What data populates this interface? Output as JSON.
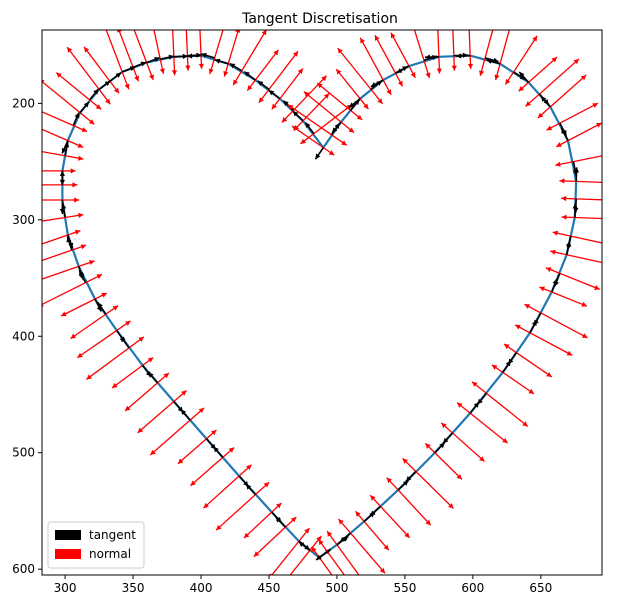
{
  "chart_data": {
    "type": "quiver",
    "title": "Tangent Discretisation",
    "xlabel": "",
    "ylabel": "",
    "xlim": [
      283,
      695
    ],
    "ylim": [
      605,
      137
    ],
    "y_inverted": true,
    "xticks": [
      300,
      350,
      400,
      450,
      500,
      550,
      600,
      650
    ],
    "yticks": [
      200,
      300,
      400,
      500,
      600
    ],
    "grid": false,
    "legend": {
      "location": "lower-left",
      "entries": [
        {
          "label": "tangent",
          "color": "#000000"
        },
        {
          "label": "normal",
          "color": "#ff0000"
        }
      ]
    },
    "curve": {
      "description": "heart-shaped closed contour",
      "color": "#1f77b4",
      "points": [
        [
          490,
          238
        ],
        [
          475,
          215
        ],
        [
          458,
          196
        ],
        [
          440,
          180
        ],
        [
          420,
          166
        ],
        [
          400,
          159
        ],
        [
          380,
          160
        ],
        [
          360,
          165
        ],
        [
          342,
          173
        ],
        [
          325,
          188
        ],
        [
          311,
          208
        ],
        [
          302,
          232
        ],
        [
          298,
          258
        ],
        [
          298,
          283
        ],
        [
          302,
          313
        ],
        [
          310,
          340
        ],
        [
          322,
          368
        ],
        [
          338,
          395
        ],
        [
          357,
          425
        ],
        [
          380,
          456
        ],
        [
          404,
          488
        ],
        [
          428,
          520
        ],
        [
          452,
          551
        ],
        [
          472,
          576
        ],
        [
          487,
          590
        ],
        [
          500,
          579
        ],
        [
          520,
          559
        ],
        [
          545,
          532
        ],
        [
          572,
          500
        ],
        [
          598,
          466
        ],
        [
          622,
          431
        ],
        [
          642,
          397
        ],
        [
          658,
          362
        ],
        [
          669,
          330
        ],
        [
          675,
          298
        ],
        [
          676,
          267
        ],
        [
          670,
          232
        ],
        [
          657,
          203
        ],
        [
          641,
          182
        ],
        [
          620,
          166
        ],
        [
          598,
          159
        ],
        [
          575,
          160
        ],
        [
          553,
          168
        ],
        [
          534,
          180
        ],
        [
          517,
          196
        ],
        [
          503,
          216
        ],
        [
          490,
          238
        ]
      ]
    },
    "tangent_color": "#000000",
    "normal_color": "#ff0000",
    "vector_sample_points": [
      [
        400,
        159
      ],
      [
        390,
        159
      ],
      [
        410,
        161
      ],
      [
        380,
        160
      ],
      [
        420,
        166
      ],
      [
        370,
        162
      ],
      [
        430,
        172
      ],
      [
        360,
        165
      ],
      [
        440,
        180
      ],
      [
        350,
        169
      ],
      [
        450,
        188
      ],
      [
        342,
        173
      ],
      [
        458,
        196
      ],
      [
        333,
        181
      ],
      [
        468,
        206
      ],
      [
        325,
        188
      ],
      [
        475,
        215
      ],
      [
        318,
        197
      ],
      [
        483,
        226
      ],
      [
        311,
        208
      ],
      [
        490,
        238
      ],
      [
        306,
        219
      ],
      [
        302,
        232
      ],
      [
        300,
        245
      ],
      [
        298,
        258
      ],
      [
        298,
        270
      ],
      [
        298,
        283
      ],
      [
        300,
        298
      ],
      [
        302,
        313
      ],
      [
        305,
        326
      ],
      [
        310,
        340
      ],
      [
        315,
        354
      ],
      [
        322,
        368
      ],
      [
        330,
        381
      ],
      [
        338,
        395
      ],
      [
        347,
        410
      ],
      [
        357,
        425
      ],
      [
        368,
        440
      ],
      [
        380,
        456
      ],
      [
        392,
        472
      ],
      [
        404,
        488
      ],
      [
        416,
        504
      ],
      [
        428,
        520
      ],
      [
        440,
        536
      ],
      [
        452,
        551
      ],
      [
        462,
        564
      ],
      [
        472,
        576
      ],
      [
        480,
        584
      ],
      [
        487,
        590
      ],
      [
        493,
        585
      ],
      [
        500,
        579
      ],
      [
        510,
        569
      ],
      [
        520,
        559
      ],
      [
        532,
        546
      ],
      [
        545,
        532
      ],
      [
        558,
        516
      ],
      [
        572,
        500
      ],
      [
        585,
        483
      ],
      [
        598,
        466
      ],
      [
        610,
        449
      ],
      [
        622,
        431
      ],
      [
        632,
        414
      ],
      [
        642,
        397
      ],
      [
        650,
        380
      ],
      [
        658,
        362
      ],
      [
        664,
        346
      ],
      [
        669,
        330
      ],
      [
        672,
        314
      ],
      [
        675,
        298
      ],
      [
        676,
        282
      ],
      [
        676,
        267
      ],
      [
        674,
        250
      ],
      [
        670,
        232
      ],
      [
        664,
        217
      ],
      [
        657,
        203
      ],
      [
        649,
        192
      ],
      [
        641,
        182
      ],
      [
        630,
        173
      ],
      [
        620,
        166
      ],
      [
        609,
        161
      ],
      [
        598,
        159
      ],
      [
        586,
        159
      ],
      [
        575,
        160
      ],
      [
        564,
        163
      ],
      [
        553,
        168
      ],
      [
        543,
        174
      ],
      [
        534,
        180
      ],
      [
        525,
        188
      ],
      [
        517,
        196
      ],
      [
        510,
        206
      ],
      [
        503,
        216
      ],
      [
        496,
        227
      ]
    ]
  }
}
